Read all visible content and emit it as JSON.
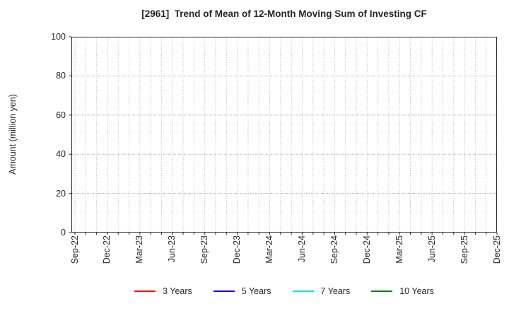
{
  "chart_data": {
    "type": "line",
    "title": "[2961]  Trend of Mean of 12-Month Moving Sum of Investing CF",
    "xlabel": "",
    "ylabel": "Amount (million yen)",
    "ylim": [
      0,
      100
    ],
    "yticks": [
      0,
      20,
      40,
      60,
      80,
      100
    ],
    "x_tick_labels": [
      "Sep-22",
      "Dec-22",
      "Mar-23",
      "Jun-23",
      "Sep-23",
      "Dec-23",
      "Mar-24",
      "Jun-24",
      "Sep-24",
      "Dec-24",
      "Mar-25",
      "Jun-25",
      "Sep-25",
      "Dec-25"
    ],
    "x_gridline_count": 40,
    "x_labels_every_n_gridlines": 3,
    "grid": true,
    "grid_style": "dotted",
    "legend_position": "bottom",
    "series": [
      {
        "name": "3 Years",
        "color": "#ff0000",
        "values": []
      },
      {
        "name": "5 Years",
        "color": "#0000ff",
        "values": []
      },
      {
        "name": "7 Years",
        "color": "#00e5e5",
        "values": []
      },
      {
        "name": "10 Years",
        "color": "#008000",
        "values": []
      }
    ]
  },
  "colors": {
    "text": "#262626",
    "spine": "#262626",
    "grid": "#ababab",
    "background": "#ffffff"
  }
}
